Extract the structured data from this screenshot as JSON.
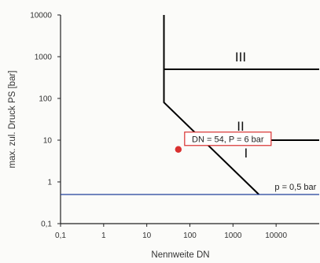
{
  "chart_data": {
    "type": "line",
    "title": "",
    "xlabel": "Nennweite DN",
    "ylabel": "max. zul. Druck PS [bar]",
    "x_scale": "log",
    "y_scale": "log",
    "xlim": [
      0.1,
      100000
    ],
    "ylim": [
      0.1,
      10000
    ],
    "x_ticks": [
      "0,1",
      "1",
      "10",
      "100",
      "1000",
      "10000"
    ],
    "y_ticks": [
      "0,1",
      "1",
      "10",
      "100",
      "1000",
      "10000"
    ],
    "grid": false,
    "series": [
      {
        "color": "#000000",
        "points": [
          [
            25,
            10000
          ],
          [
            25,
            80
          ],
          [
            4000,
            0.5
          ]
        ]
      },
      {
        "color": "#000000",
        "points": [
          [
            25,
            500
          ],
          [
            100000,
            500
          ]
        ]
      },
      {
        "color": "#000000",
        "points": [
          [
            350,
            10
          ],
          [
            100000,
            10
          ]
        ]
      },
      {
        "color": "#1f3f9a",
        "points": [
          [
            0.1,
            0.5
          ],
          [
            100000,
            0.5
          ]
        ]
      }
    ],
    "regions": [
      {
        "label": "I",
        "x": 2000,
        "y": 5
      },
      {
        "label": "II",
        "x": 1500,
        "y": 22
      },
      {
        "label": "III",
        "x": 1500,
        "y": 1000
      }
    ],
    "pressure_note": {
      "text": "p = 0,5 bar",
      "x": 8000,
      "y": 0.5
    },
    "point": {
      "x": 54,
      "y": 6,
      "color": "#d93030"
    },
    "annotation": {
      "text": "DN = 54, P = 6 bar",
      "x": 54,
      "y": 6,
      "border_color": "#d93030"
    }
  }
}
